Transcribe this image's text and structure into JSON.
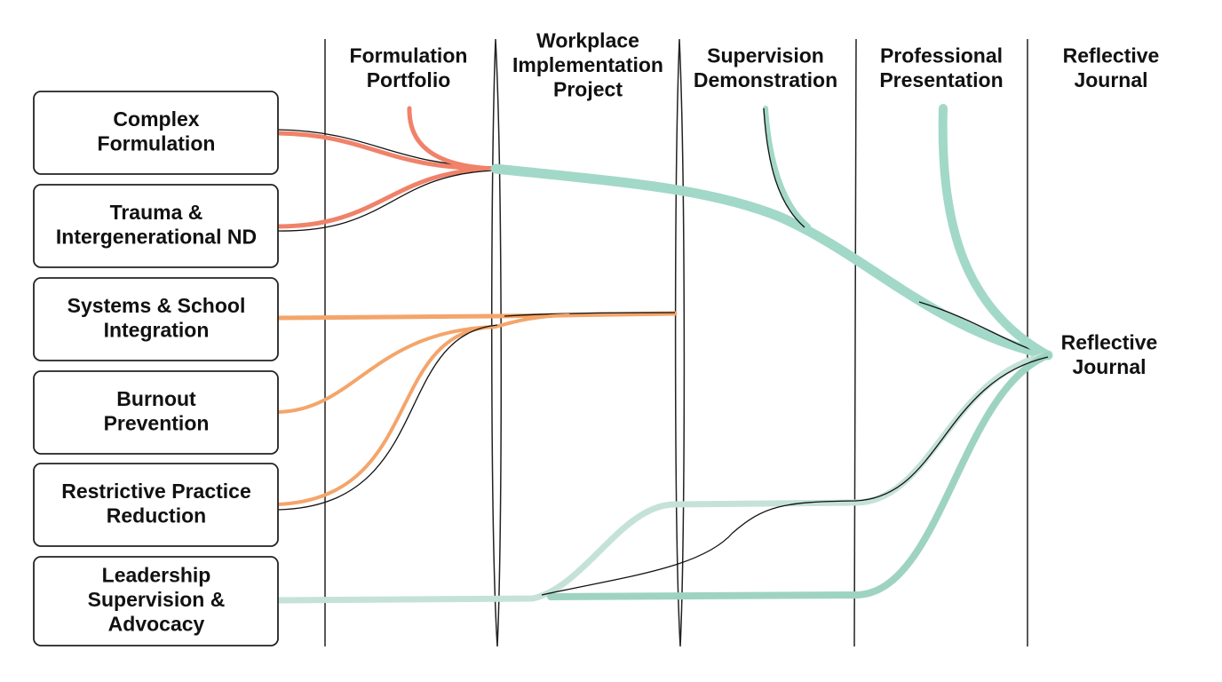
{
  "columns": [
    {
      "lines": [
        "Formulation",
        "Portfolio"
      ]
    },
    {
      "lines": [
        "Workplace",
        "Implementation",
        "Project"
      ]
    },
    {
      "lines": [
        "Supervision",
        "Demonstration"
      ]
    },
    {
      "lines": [
        "Professional",
        "Presentation"
      ]
    },
    {
      "lines": [
        "Reflective",
        "Journal"
      ]
    }
  ],
  "nodes": [
    {
      "lines": [
        "Complex",
        "Formulation"
      ]
    },
    {
      "lines": [
        "Trauma &",
        "Intergenerational ND"
      ]
    },
    {
      "lines": [
        "Systems & School",
        "Integration"
      ]
    },
    {
      "lines": [
        "Burnout",
        "Prevention"
      ]
    },
    {
      "lines": [
        "Restrictive Practice",
        "Reduction"
      ]
    },
    {
      "lines": [
        "Leadership",
        "Supervision &",
        "Advocacy"
      ]
    }
  ],
  "target": {
    "lines": [
      "Reflective",
      "Journal"
    ]
  }
}
